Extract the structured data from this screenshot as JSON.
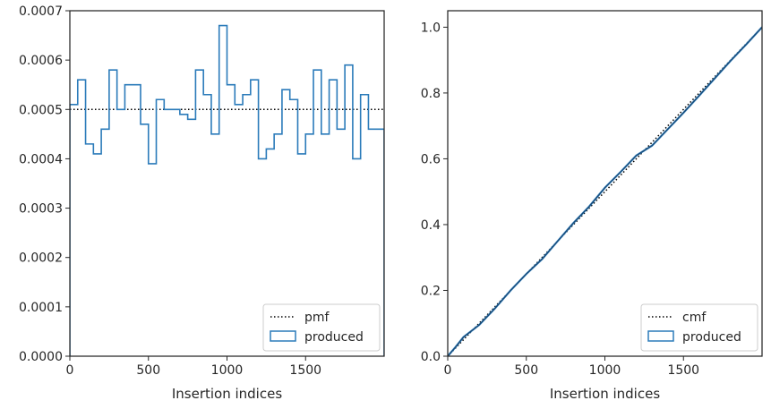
{
  "colors": {
    "produced": "#2b7bba",
    "reference": "#000000",
    "axes": "#262626",
    "legend_border": "#cccccc"
  },
  "chart_data": [
    {
      "type": "histogram",
      "xlabel": "Insertion indices",
      "ylabel": "",
      "xlim": [
        0,
        2000
      ],
      "ylim": [
        0,
        0.0007
      ],
      "x_ticks": [
        0,
        500,
        1000,
        1500
      ],
      "y_ticks": [
        "0.0000",
        "0.0001",
        "0.0002",
        "0.0003",
        "0.0004",
        "0.0005",
        "0.0006",
        "0.0007"
      ],
      "legend": {
        "position": "lower right",
        "entries": [
          "pmf",
          "produced"
        ]
      },
      "series": [
        {
          "name": "pmf",
          "style": "dotted",
          "x": [
            0,
            2000
          ],
          "y": [
            0.0005,
            0.0005
          ]
        },
        {
          "name": "produced",
          "style": "step",
          "bin_edges": [
            0,
            50,
            100,
            150,
            200,
            250,
            300,
            350,
            400,
            450,
            500,
            550,
            600,
            650,
            700,
            750,
            800,
            850,
            900,
            950,
            1000,
            1050,
            1100,
            1150,
            1200,
            1250,
            1300,
            1350,
            1400,
            1450,
            1500,
            1550,
            1600,
            1650,
            1700,
            1750,
            1800,
            1850,
            1900,
            1950,
            2000
          ],
          "values": [
            0.00051,
            0.00056,
            0.00043,
            0.00041,
            0.00046,
            0.00058,
            0.0005,
            0.00055,
            0.00055,
            0.00047,
            0.00039,
            0.00052,
            0.0005,
            0.0005,
            0.00049,
            0.00048,
            0.00058,
            0.00053,
            0.00045,
            0.00067,
            0.00055,
            0.00051,
            0.00053,
            0.00056,
            0.0004,
            0.00042,
            0.00045,
            0.00054,
            0.00052,
            0.00041,
            0.00045,
            0.00058,
            0.00045,
            0.00056,
            0.00046,
            0.00059,
            0.0004,
            0.00053,
            0.00046,
            0.00046
          ]
        }
      ]
    },
    {
      "type": "line",
      "xlabel": "Insertion indices",
      "ylabel": "",
      "xlim": [
        0,
        2000
      ],
      "ylim": [
        0,
        1.05
      ],
      "x_ticks": [
        0,
        500,
        1000,
        1500
      ],
      "y_ticks": [
        "0.0",
        "0.2",
        "0.4",
        "0.6",
        "0.8",
        "1.0"
      ],
      "legend": {
        "position": "lower right",
        "entries": [
          "cmf",
          "produced"
        ]
      },
      "series": [
        {
          "name": "cmf",
          "style": "dotted",
          "x": [
            0,
            2000
          ],
          "y": [
            0,
            1.0
          ]
        },
        {
          "name": "produced",
          "style": "line",
          "x": [
            0,
            50,
            100,
            200,
            300,
            400,
            500,
            600,
            700,
            800,
            900,
            1000,
            1100,
            1200,
            1300,
            1400,
            1500,
            1600,
            1700,
            1800,
            1900,
            2000
          ],
          "y": [
            0,
            0.028,
            0.058,
            0.095,
            0.145,
            0.2,
            0.25,
            0.295,
            0.35,
            0.405,
            0.455,
            0.512,
            0.56,
            0.61,
            0.64,
            0.69,
            0.74,
            0.792,
            0.845,
            0.898,
            0.948,
            1.0
          ]
        }
      ]
    }
  ]
}
